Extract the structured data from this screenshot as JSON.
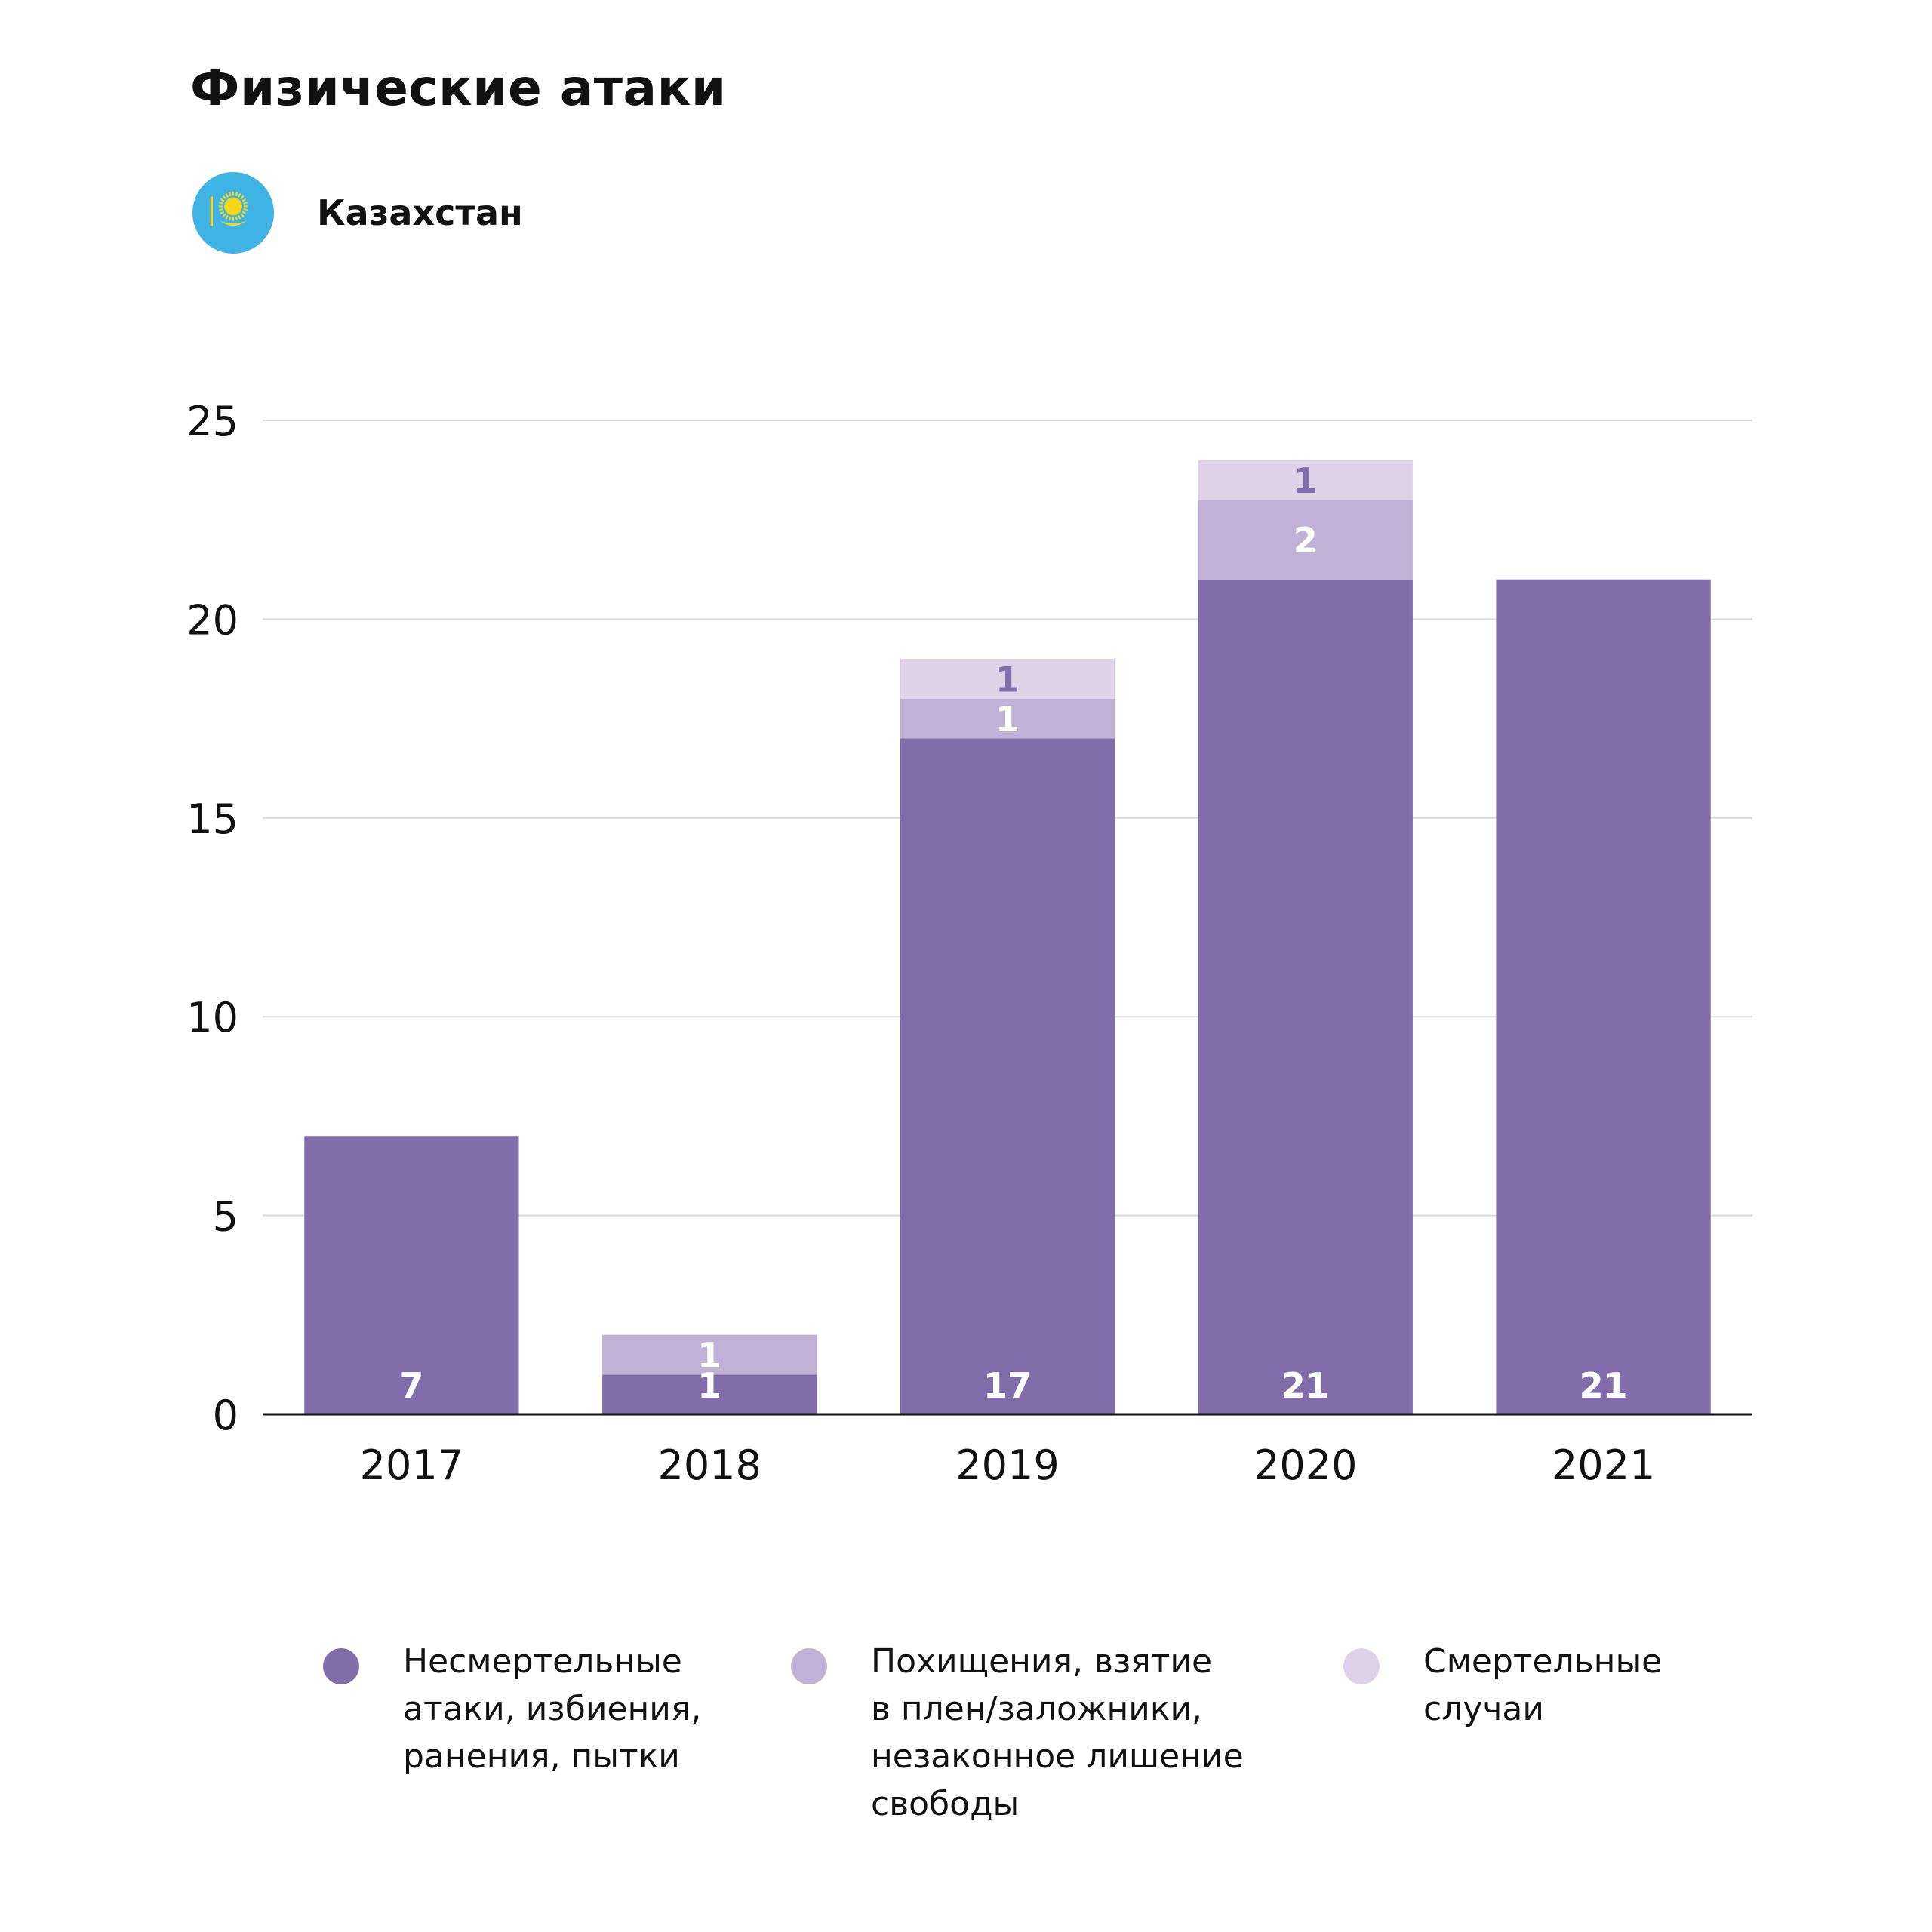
{
  "title": "Физические атаки",
  "country": {
    "name": "Казахстан",
    "flag_icon": "kazakhstan-flag-icon",
    "flag_colors": {
      "background": "#3fb3e4",
      "emblem": "#f9d616"
    }
  },
  "colors": {
    "non_lethal": "#826dab",
    "kidnapping": "#c0b1d6",
    "fatal": "#ddd2e8",
    "grid": "#d9d9d9",
    "axis": "#111111",
    "label_light": "#ffffff",
    "label_dark": "#826dab"
  },
  "legend": [
    {
      "label": "Несмертельные\nатаки, избиения,\nранения, пытки",
      "color": "#826dab"
    },
    {
      "label": "Похищения, взятие\nв плен/заложники,\nнезаконное лишение\nсвободы",
      "color": "#c0b1d6"
    },
    {
      "label": "Смертельные\nслучаи",
      "color": "#ddd2e8"
    }
  ],
  "chart_data": {
    "type": "bar",
    "stacked": true,
    "title": "Физические атаки",
    "categories": [
      "2017",
      "2018",
      "2019",
      "2020",
      "2021"
    ],
    "series": [
      {
        "name": "Несмертельные атаки, избиения, ранения, пытки",
        "values": [
          7,
          1,
          17,
          21,
          21
        ],
        "labels": [
          "7",
          "1",
          "17",
          "21",
          "21"
        ]
      },
      {
        "name": "Похищения, взятие в плен/заложники, незаконное лишение свободы",
        "values": [
          0,
          1,
          1,
          2,
          0
        ],
        "labels": [
          "",
          "1",
          "1",
          "2",
          ""
        ]
      },
      {
        "name": "Смертельные случаи",
        "values": [
          0,
          0,
          1,
          1,
          0
        ],
        "labels": [
          "",
          "",
          "1",
          "1",
          ""
        ]
      }
    ],
    "ylim": [
      0,
      25
    ],
    "yticks": [
      0,
      5,
      10,
      15,
      20,
      25
    ],
    "ytick_labels": [
      "0",
      "5",
      "10",
      "15",
      "20",
      "25"
    ],
    "grid": true,
    "legend_position": "bottom"
  }
}
